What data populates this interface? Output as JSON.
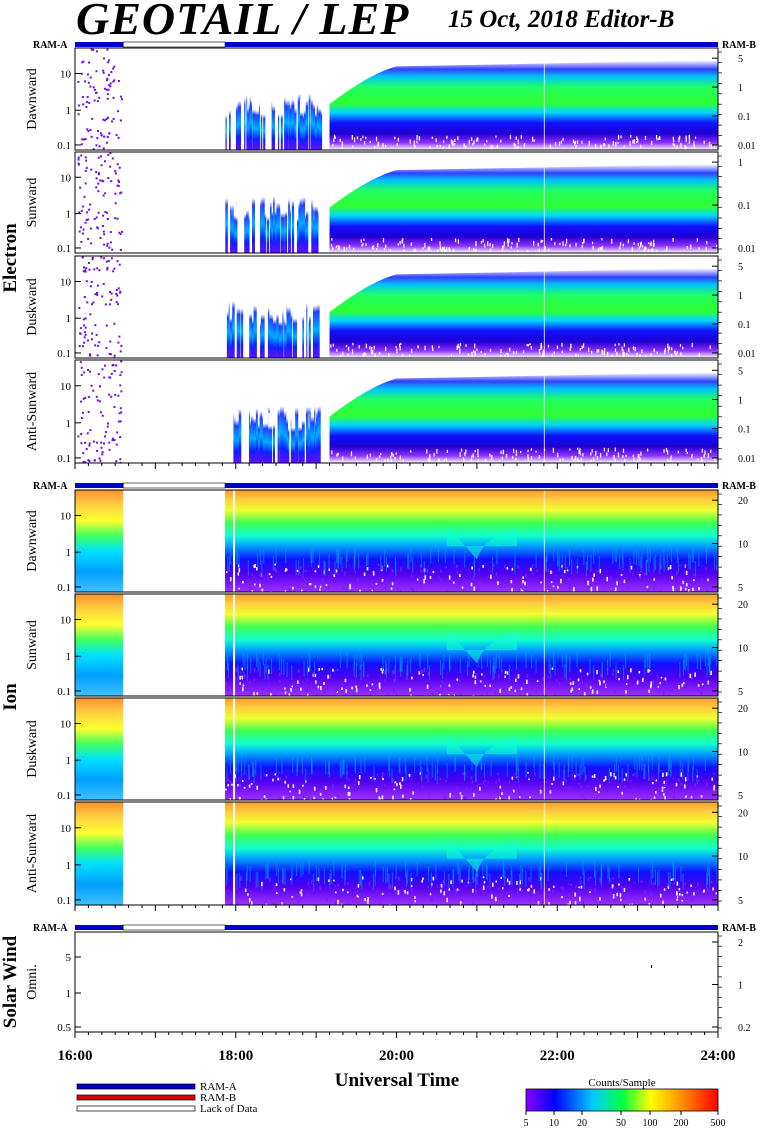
{
  "header": {
    "title": "GEOTAIL / LEP",
    "date_editor": "15 Oct, 2018   Editor-B"
  },
  "ram_labels": {
    "a": "RAM-A",
    "b": "RAM-B"
  },
  "legend": {
    "ram_a": "RAM-A",
    "ram_b": "RAM-B",
    "lack": "Lack of Data",
    "colors": {
      "ram_a": "#0000cc",
      "ram_b": "#dd0000",
      "lack": "#ffffff"
    }
  },
  "colorbar": {
    "title": "Counts/Sample",
    "ticks": [
      "5",
      "10",
      "20",
      "50",
      "100",
      "200",
      "500"
    ]
  },
  "chart_data": {
    "type": "heatmap",
    "xlabel": "Universal Time",
    "x_ticks": [
      "16:00",
      "18:00",
      "20:00",
      "22:00",
      "24:00"
    ],
    "x_range": [
      "16:00",
      "24:00"
    ],
    "data_coverage": [
      {
        "from": "16:00",
        "to": "16:36",
        "status": "RAM-A"
      },
      {
        "from": "16:36",
        "to": "17:52",
        "status": "Lack of Data"
      },
      {
        "from": "17:52",
        "to": "24:00",
        "status": "RAM-A"
      }
    ],
    "groups": [
      {
        "name": "Electron",
        "panels": [
          {
            "label": "Dawnward",
            "left_ticks": [
              "10",
              "1",
              "0.1"
            ],
            "right_ticks": [
              "5",
              "1",
              "0.1",
              "0.01"
            ]
          },
          {
            "label": "Sunward",
            "left_ticks": [
              "10",
              "1",
              "0.1"
            ],
            "right_ticks": [
              "1",
              "0.1",
              "0.01"
            ]
          },
          {
            "label": "Duskward",
            "left_ticks": [
              "10",
              "1",
              "0.1"
            ],
            "right_ticks": [
              "5",
              "1",
              "0.1",
              "0.01"
            ]
          },
          {
            "label": "Anti-Sunward",
            "left_ticks": [
              "10",
              "1",
              "0.1"
            ],
            "right_ticks": [
              "5",
              "1",
              "0.1",
              "0.01"
            ]
          }
        ]
      },
      {
        "name": "Ion",
        "panels": [
          {
            "label": "Dawnward",
            "left_ticks": [
              "10",
              "1",
              "0.1"
            ],
            "right_ticks": [
              "20",
              "10",
              "5"
            ]
          },
          {
            "label": "Sunward",
            "left_ticks": [
              "10",
              "1",
              "0.1"
            ],
            "right_ticks": [
              "20",
              "10",
              "5"
            ]
          },
          {
            "label": "Duskward",
            "left_ticks": [
              "10",
              "1",
              "0.1"
            ],
            "right_ticks": [
              "20",
              "10",
              "5"
            ]
          },
          {
            "label": "Anti-Sunward",
            "left_ticks": [
              "10",
              "1",
              "0.1"
            ],
            "right_ticks": [
              "20",
              "10",
              "5"
            ]
          }
        ]
      },
      {
        "name": "Solar Wind",
        "panels": [
          {
            "label": "Omni.",
            "left_ticks": [
              "5",
              "1",
              "0.5"
            ],
            "right_ticks": [
              "2",
              "1",
              "0.2"
            ]
          }
        ]
      }
    ]
  }
}
